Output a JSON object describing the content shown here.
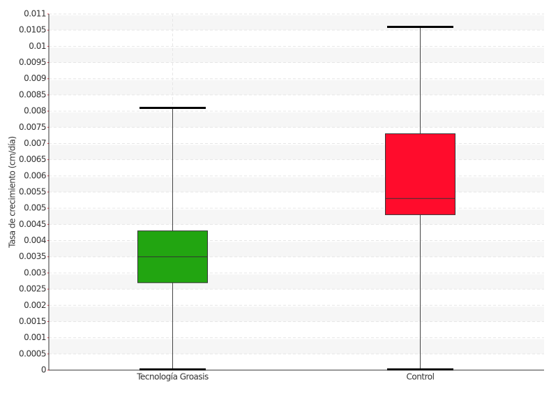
{
  "chart_data": {
    "type": "box",
    "y_label": "Tasa de crecimiento (cm/día)",
    "categories": [
      "Tecnología Groasis",
      "Control"
    ],
    "colors": [
      "#22a511",
      "#ff0c2c"
    ],
    "boxes": [
      {
        "min": 0,
        "q1": 0.0027,
        "median": 0.0035,
        "q3": 0.0043,
        "max": 0.0081
      },
      {
        "min": 0,
        "q1": 0.0048,
        "median": 0.0053,
        "q3": 0.0073,
        "max": 0.0106
      }
    ],
    "ylim": [
      0,
      0.011
    ],
    "yticks": [
      0,
      0.0005,
      0.001,
      0.0015,
      0.002,
      0.0025,
      0.003,
      0.0035,
      0.004,
      0.0045,
      0.005,
      0.0055,
      0.006,
      0.0065,
      0.007,
      0.0075,
      0.008,
      0.0085,
      0.009,
      0.0095,
      0.01,
      0.0105,
      0.011
    ],
    "grid": true
  }
}
